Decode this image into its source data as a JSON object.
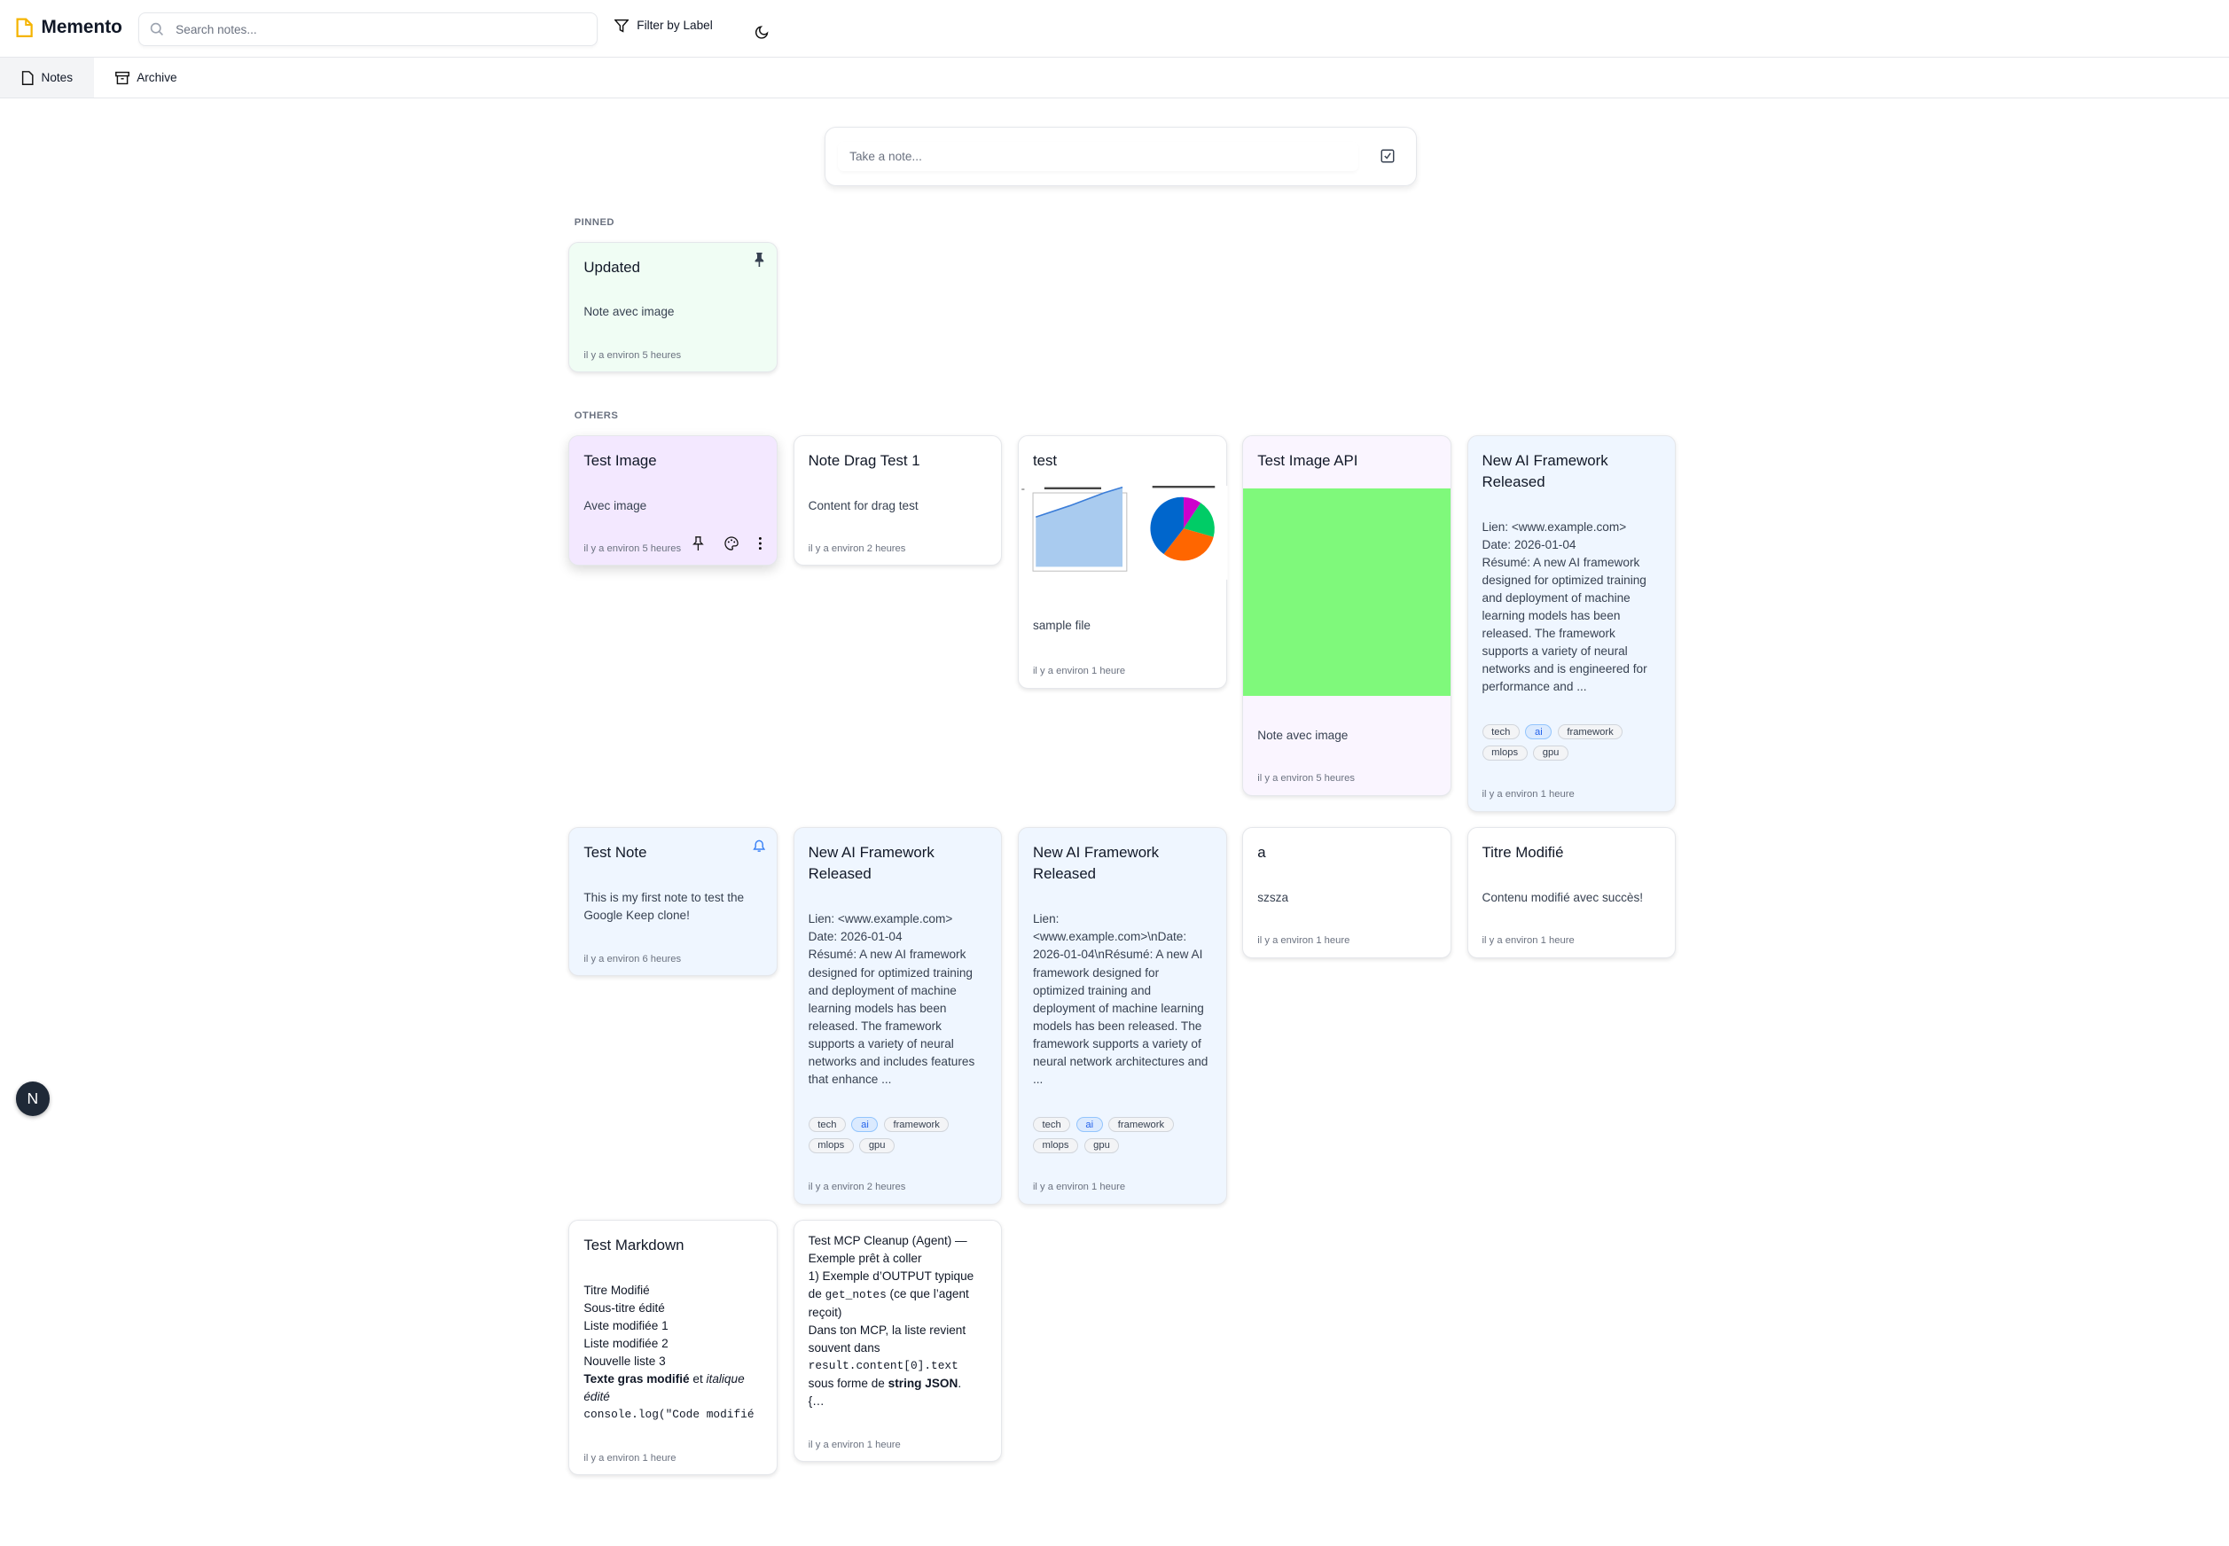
{
  "app": {
    "title": "Memento",
    "accent": "#f5b400"
  },
  "header": {
    "search_placeholder": "Search notes...",
    "filter_label": "Filter by Label",
    "icons": [
      "note-icon",
      "search-icon",
      "filter-icon",
      "moon-icon"
    ]
  },
  "tabs": [
    {
      "label": "Notes",
      "icon": "file-icon",
      "active": true
    },
    {
      "label": "Archive",
      "icon": "archive-icon",
      "active": false
    }
  ],
  "composer": {
    "placeholder": "Take a note...",
    "icon": "checkbox-icon"
  },
  "sections": {
    "pinned": "PINNED",
    "others": "OTHERS"
  },
  "pinned": [
    {
      "title": "Updated",
      "body": "Note avec image",
      "time": "il y a environ 5 heures",
      "color": "#f0fdf4",
      "icon": "pin-icon"
    }
  ],
  "others": [
    {
      "title": "Test Image",
      "body": "Avec image",
      "time": "il y a environ 5 heures",
      "color": "#f3e8ff"
    },
    {
      "title": "Note Drag Test 1",
      "body": "Content for drag test",
      "time": "il y a environ 2 heures",
      "color": "#ffffff"
    },
    {
      "title": "test",
      "body": "sample file",
      "time": "il y a environ 1 heure",
      "color": "#ffffff"
    },
    {
      "title": "Test Image API",
      "body": "Note avec image",
      "time": "il y a environ 5 heures",
      "color": "#faf5ff",
      "image_color": "#7ff97b"
    },
    {
      "title": "New AI Framework Released",
      "body": "Lien: <www.example.com>\nDate: 2026-01-04\nRésumé: A new AI framework designed for optimized training and deployment of machine learning models has been released. The framework supports a variety of neural networks and is engineered for performance and ...",
      "tags": [
        "tech",
        "ai",
        "framework",
        "mlops",
        "gpu"
      ],
      "time": "il y a environ 1 heure",
      "color": "#eff6ff"
    },
    {
      "title": "Test Note",
      "body": "This is my first note to test the Google Keep clone!",
      "time": "il y a environ 6 heures",
      "color": "#eff6ff",
      "icon": "bell-icon"
    },
    {
      "title": "New AI Framework Released",
      "body": "Lien: <www.example.com>\nDate: 2026-01-04\nRésumé: A new AI framework designed for optimized training and deployment of machine learning models has been released. The framework supports a variety of neural networks and includes features that enhance ...",
      "tags": [
        "tech",
        "ai",
        "framework",
        "mlops",
        "gpu"
      ],
      "time": "il y a environ 2 heures",
      "color": "#eff6ff"
    },
    {
      "title": "New AI Framework Released",
      "body": "Lien: <www.example.com>\\nDate: 2026-01-04\\nRésumé: A new AI framework designed for optimized training and deployment of machine learning models has been released. The framework supports a variety of neural network architectures and ...",
      "tags": [
        "tech",
        "ai",
        "framework",
        "mlops",
        "gpu"
      ],
      "time": "il y a environ 1 heure",
      "color": "#eff6ff"
    },
    {
      "title": "a",
      "body": "szsza",
      "time": "il y a environ 1 heure",
      "color": "#ffffff"
    },
    {
      "title": "Titre Modifié",
      "body": "Contenu modifié avec succès!",
      "time": "il y a environ 1 heure",
      "color": "#ffffff"
    },
    {
      "title": "Test Markdown",
      "md": {
        "lines": [
          "Titre Modifié",
          "Sous-titre édité",
          "Liste modifiée 1",
          "Liste modifiée 2",
          "Nouvelle liste 3"
        ],
        "bold": "Texte gras modifié",
        "and": " et ",
        "italic": "italique édité",
        "code": "console.log(\"Code modifié ;"
      },
      "time": "il y a environ 1 heure",
      "color": "#ffffff"
    },
    {
      "mcp": {
        "l1": "Test MCP Cleanup (Agent) — Exemple prêt à coller",
        "l2a": "1) Exemple d’OUTPUT typique de ",
        "l2code": "get_notes",
        "l2b": " (ce que l’agent reçoit)",
        "l3": "Dans ton MCP, la liste revient souvent dans",
        "l4code": "result.content[0].text",
        "l5a": "sous forme de ",
        "l5bold": "string JSON",
        "l5b": ".",
        "l6": "{…"
      },
      "time": "il y a environ 1 heure",
      "color": "#ffffff"
    }
  ],
  "floating_button": "N"
}
